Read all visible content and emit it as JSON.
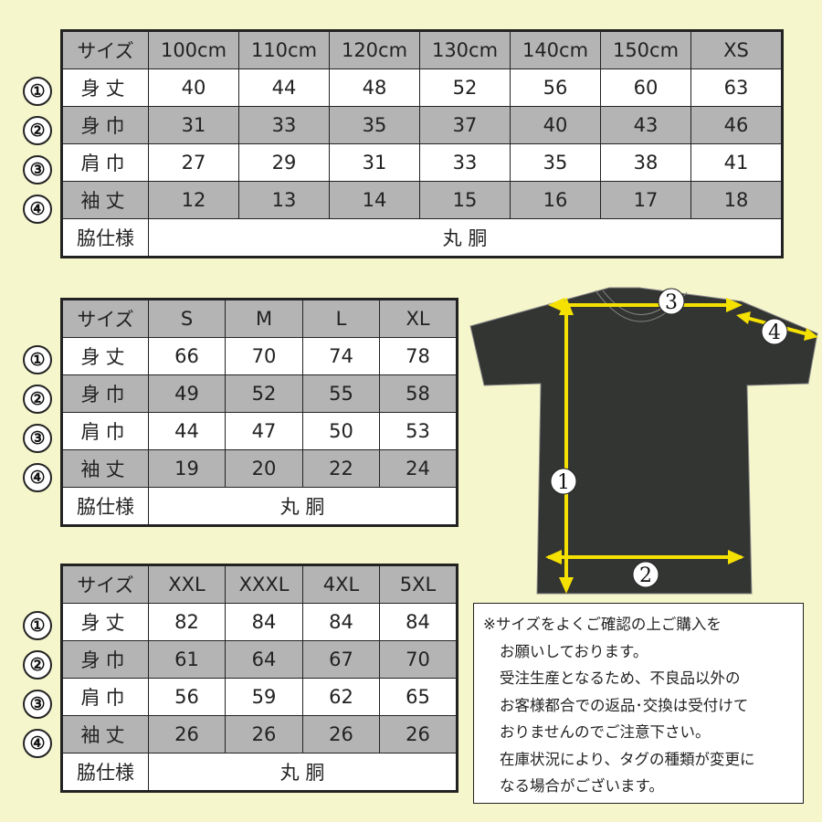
{
  "tables": [
    {
      "header": [
        "サイズ",
        "100cm",
        "110cm",
        "120cm",
        "130cm",
        "140cm",
        "150cm",
        "XS"
      ],
      "rows": [
        {
          "num": "①",
          "label": "身丈",
          "values": [
            "40",
            "44",
            "48",
            "52",
            "56",
            "60",
            "63"
          ]
        },
        {
          "num": "②",
          "label": "身巾",
          "values": [
            "31",
            "33",
            "35",
            "37",
            "40",
            "43",
            "46"
          ]
        },
        {
          "num": "③",
          "label": "肩巾",
          "values": [
            "27",
            "29",
            "31",
            "33",
            "35",
            "38",
            "41"
          ]
        },
        {
          "num": "④",
          "label": "袖丈",
          "values": [
            "12",
            "13",
            "14",
            "15",
            "16",
            "17",
            "18"
          ]
        }
      ],
      "side_label": "脇仕様",
      "side_value": "丸 胴"
    },
    {
      "header": [
        "サイズ",
        "S",
        "M",
        "L",
        "XL"
      ],
      "rows": [
        {
          "num": "①",
          "label": "身丈",
          "values": [
            "66",
            "70",
            "74",
            "78"
          ]
        },
        {
          "num": "②",
          "label": "身巾",
          "values": [
            "49",
            "52",
            "55",
            "58"
          ]
        },
        {
          "num": "③",
          "label": "肩巾",
          "values": [
            "44",
            "47",
            "50",
            "53"
          ]
        },
        {
          "num": "④",
          "label": "袖丈",
          "values": [
            "19",
            "20",
            "22",
            "24"
          ]
        }
      ],
      "side_label": "脇仕様",
      "side_value": "丸 胴"
    },
    {
      "header": [
        "サイズ",
        "XXL",
        "XXXL",
        "4XL",
        "5XL"
      ],
      "rows": [
        {
          "num": "①",
          "label": "身丈",
          "values": [
            "82",
            "84",
            "84",
            "84"
          ]
        },
        {
          "num": "②",
          "label": "身巾",
          "values": [
            "61",
            "64",
            "67",
            "70"
          ]
        },
        {
          "num": "③",
          "label": "肩巾",
          "values": [
            "56",
            "59",
            "62",
            "65"
          ]
        },
        {
          "num": "④",
          "label": "袖丈",
          "values": [
            "26",
            "26",
            "26",
            "26"
          ]
        }
      ],
      "side_label": "脇仕様",
      "side_value": "丸 胴"
    }
  ],
  "diagram": {
    "markers": [
      "①",
      "②",
      "③",
      "④"
    ],
    "shirt_color": "#333533",
    "arrow_color": "#f5e100"
  },
  "note": {
    "lines": [
      "※サイズをよくご確認の上ご購入を",
      "お願いしております。",
      "受注生産となるため、不良品以外の",
      "お客様都合での返品･交換は受付けて",
      "おりませんのでご注意下さい。",
      "在庫状況により、タグの種類が変更に",
      "なる場合がございます。"
    ]
  }
}
